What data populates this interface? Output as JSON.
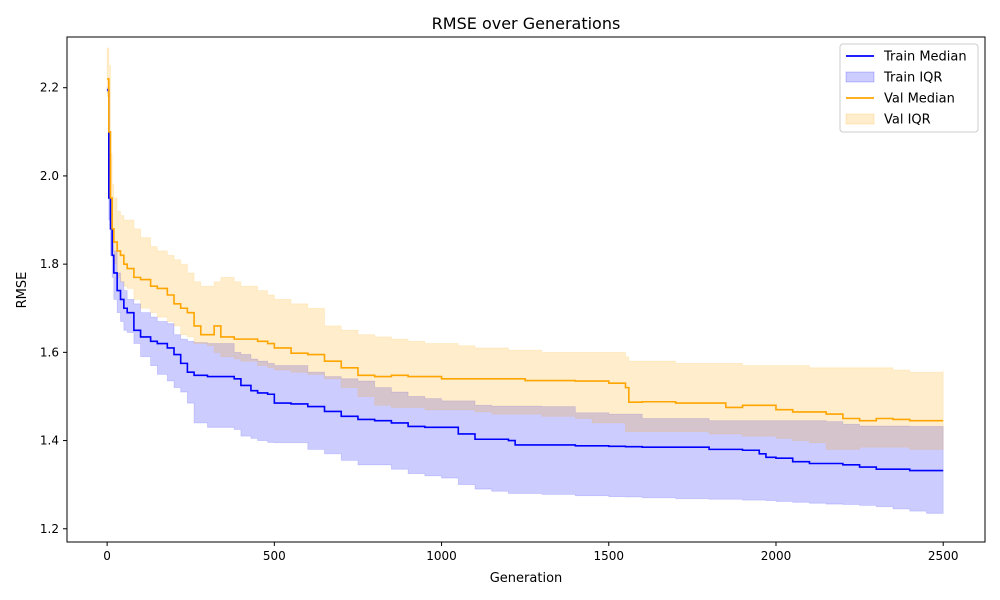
{
  "chart_data": {
    "type": "line",
    "title": "RMSE over Generations",
    "xlabel": "Generation",
    "ylabel": "RMSE",
    "xlim": [
      -120,
      2625
    ],
    "ylim": [
      1.17,
      2.315
    ],
    "xticks": [
      0,
      500,
      1000,
      1500,
      2000,
      2500
    ],
    "xtick_labels": [
      "0",
      "500",
      "1000",
      "1500",
      "2000",
      "2500"
    ],
    "yticks": [
      1.2,
      1.4,
      1.6,
      1.8,
      2.0,
      2.2
    ],
    "ytick_labels": [
      "1.2",
      "1.4",
      "1.6",
      "1.8",
      "2.0",
      "2.2"
    ],
    "grid": false,
    "legend_placement": "top-right",
    "legend": [
      {
        "label": "Train Median",
        "kind": "line",
        "color": "#0000ff"
      },
      {
        "label": "Train IQR",
        "kind": "fill",
        "color": "#0000ff"
      },
      {
        "label": "Val Median",
        "kind": "line",
        "color": "#ffa500"
      },
      {
        "label": "Val IQR",
        "kind": "fill",
        "color": "#ffa500"
      }
    ],
    "series": [
      {
        "name": "Train Median",
        "kind": "line",
        "color": "#0000ff",
        "x": [
          0,
          5,
          10,
          15,
          20,
          30,
          40,
          50,
          60,
          80,
          100,
          130,
          150,
          180,
          200,
          220,
          240,
          260,
          300,
          380,
          400,
          430,
          450,
          480,
          500,
          550,
          600,
          650,
          700,
          750,
          800,
          850,
          900,
          950,
          1000,
          1050,
          1100,
          1150,
          1200,
          1220,
          1300,
          1400,
          1500,
          1550,
          1600,
          1700,
          1800,
          1900,
          1950,
          1970,
          2000,
          2050,
          2100,
          2150,
          2200,
          2250,
          2300,
          2350,
          2400,
          2450,
          2500
        ],
        "y": [
          2.195,
          1.95,
          1.88,
          1.82,
          1.78,
          1.74,
          1.72,
          1.7,
          1.69,
          1.65,
          1.635,
          1.625,
          1.62,
          1.61,
          1.595,
          1.575,
          1.555,
          1.548,
          1.545,
          1.54,
          1.525,
          1.513,
          1.508,
          1.505,
          1.485,
          1.483,
          1.477,
          1.466,
          1.455,
          1.448,
          1.445,
          1.44,
          1.432,
          1.43,
          1.43,
          1.415,
          1.403,
          1.403,
          1.4,
          1.39,
          1.39,
          1.388,
          1.387,
          1.386,
          1.385,
          1.385,
          1.38,
          1.378,
          1.37,
          1.362,
          1.36,
          1.352,
          1.348,
          1.348,
          1.345,
          1.34,
          1.335,
          1.335,
          1.332,
          1.332,
          1.332
        ]
      },
      {
        "name": "Train IQR",
        "kind": "band",
        "color": "#0000ff",
        "x": [
          0,
          5,
          10,
          15,
          20,
          30,
          40,
          50,
          60,
          80,
          100,
          130,
          150,
          180,
          200,
          220,
          240,
          260,
          300,
          380,
          400,
          430,
          450,
          480,
          500,
          550,
          600,
          650,
          700,
          750,
          800,
          850,
          900,
          950,
          1000,
          1050,
          1100,
          1150,
          1200,
          1220,
          1300,
          1400,
          1500,
          1550,
          1600,
          1700,
          1800,
          1900,
          1950,
          1970,
          2000,
          2050,
          2100,
          2150,
          2200,
          2250,
          2300,
          2350,
          2400,
          2450,
          2500
        ],
        "lower": [
          2.19,
          1.9,
          1.82,
          1.77,
          1.72,
          1.69,
          1.67,
          1.65,
          1.645,
          1.62,
          1.59,
          1.57,
          1.55,
          1.535,
          1.52,
          1.51,
          1.485,
          1.44,
          1.43,
          1.425,
          1.41,
          1.405,
          1.4,
          1.396,
          1.395,
          1.395,
          1.38,
          1.37,
          1.355,
          1.345,
          1.345,
          1.335,
          1.325,
          1.32,
          1.315,
          1.3,
          1.29,
          1.285,
          1.28,
          1.28,
          1.278,
          1.275,
          1.273,
          1.272,
          1.27,
          1.268,
          1.267,
          1.265,
          1.265,
          1.264,
          1.262,
          1.26,
          1.258,
          1.256,
          1.255,
          1.253,
          1.25,
          1.245,
          1.24,
          1.235,
          1.235
        ],
        "upper": [
          2.2,
          2.05,
          1.95,
          1.88,
          1.83,
          1.78,
          1.76,
          1.74,
          1.72,
          1.71,
          1.69,
          1.68,
          1.67,
          1.665,
          1.64,
          1.63,
          1.625,
          1.622,
          1.62,
          1.6,
          1.595,
          1.585,
          1.58,
          1.575,
          1.57,
          1.57,
          1.555,
          1.545,
          1.54,
          1.535,
          1.52,
          1.51,
          1.5,
          1.495,
          1.49,
          1.49,
          1.48,
          1.478,
          1.478,
          1.478,
          1.477,
          1.463,
          1.46,
          1.46,
          1.45,
          1.45,
          1.445,
          1.445,
          1.445,
          1.445,
          1.445,
          1.445,
          1.445,
          1.443,
          1.437,
          1.433,
          1.433,
          1.433,
          1.432,
          1.432,
          1.43
        ]
      },
      {
        "name": "Val Median",
        "kind": "line",
        "color": "#ffa500",
        "x": [
          0,
          5,
          10,
          15,
          20,
          30,
          40,
          50,
          60,
          80,
          100,
          130,
          150,
          180,
          200,
          220,
          240,
          260,
          280,
          300,
          320,
          340,
          380,
          400,
          450,
          480,
          500,
          550,
          600,
          650,
          700,
          750,
          800,
          850,
          900,
          950,
          1000,
          1050,
          1100,
          1150,
          1200,
          1250,
          1300,
          1400,
          1450,
          1500,
          1550,
          1560,
          1600,
          1700,
          1800,
          1850,
          1900,
          1950,
          2000,
          2050,
          2100,
          2150,
          2200,
          2250,
          2300,
          2350,
          2400,
          2450,
          2500
        ],
        "y": [
          2.22,
          2.1,
          1.95,
          1.88,
          1.85,
          1.83,
          1.82,
          1.8,
          1.79,
          1.77,
          1.765,
          1.75,
          1.745,
          1.73,
          1.71,
          1.7,
          1.69,
          1.66,
          1.64,
          1.64,
          1.66,
          1.635,
          1.63,
          1.63,
          1.625,
          1.62,
          1.61,
          1.598,
          1.595,
          1.58,
          1.565,
          1.548,
          1.545,
          1.548,
          1.545,
          1.545,
          1.54,
          1.54,
          1.54,
          1.54,
          1.54,
          1.536,
          1.536,
          1.535,
          1.535,
          1.53,
          1.52,
          1.487,
          1.488,
          1.485,
          1.485,
          1.475,
          1.48,
          1.48,
          1.47,
          1.465,
          1.465,
          1.46,
          1.45,
          1.445,
          1.45,
          1.448,
          1.445,
          1.445,
          1.445
        ]
      },
      {
        "name": "Val IQR",
        "kind": "band",
        "color": "#ffa500",
        "x": [
          0,
          5,
          10,
          15,
          20,
          30,
          40,
          50,
          60,
          80,
          100,
          130,
          150,
          180,
          200,
          220,
          240,
          260,
          280,
          300,
          320,
          340,
          380,
          400,
          450,
          480,
          500,
          550,
          600,
          650,
          700,
          750,
          800,
          850,
          900,
          950,
          1000,
          1050,
          1100,
          1150,
          1200,
          1250,
          1300,
          1400,
          1450,
          1500,
          1550,
          1560,
          1600,
          1700,
          1800,
          1850,
          1900,
          1950,
          2000,
          2050,
          2100,
          2150,
          2200,
          2250,
          2300,
          2350,
          2400,
          2450,
          2500
        ],
        "lower": [
          2.18,
          2.0,
          1.88,
          1.83,
          1.8,
          1.77,
          1.76,
          1.75,
          1.745,
          1.72,
          1.7,
          1.69,
          1.68,
          1.67,
          1.66,
          1.64,
          1.635,
          1.62,
          1.62,
          1.615,
          1.6,
          1.59,
          1.585,
          1.58,
          1.57,
          1.565,
          1.56,
          1.555,
          1.55,
          1.54,
          1.52,
          1.5,
          1.48,
          1.475,
          1.475,
          1.47,
          1.47,
          1.47,
          1.465,
          1.46,
          1.46,
          1.46,
          1.455,
          1.45,
          1.44,
          1.44,
          1.42,
          1.42,
          1.42,
          1.42,
          1.415,
          1.415,
          1.41,
          1.41,
          1.405,
          1.4,
          1.395,
          1.38,
          1.38,
          1.385,
          1.385,
          1.385,
          1.38,
          1.38,
          1.38
        ],
        "upper": [
          2.29,
          2.25,
          2.05,
          1.98,
          1.95,
          1.92,
          1.91,
          1.9,
          1.9,
          1.88,
          1.86,
          1.84,
          1.83,
          1.82,
          1.81,
          1.8,
          1.78,
          1.76,
          1.75,
          1.75,
          1.76,
          1.77,
          1.76,
          1.75,
          1.74,
          1.73,
          1.72,
          1.71,
          1.7,
          1.66,
          1.65,
          1.64,
          1.635,
          1.63,
          1.625,
          1.62,
          1.62,
          1.615,
          1.61,
          1.61,
          1.605,
          1.605,
          1.6,
          1.6,
          1.6,
          1.6,
          1.59,
          1.58,
          1.58,
          1.575,
          1.575,
          1.575,
          1.57,
          1.57,
          1.57,
          1.57,
          1.565,
          1.565,
          1.565,
          1.565,
          1.565,
          1.56,
          1.555,
          1.555,
          1.56
        ]
      }
    ]
  }
}
